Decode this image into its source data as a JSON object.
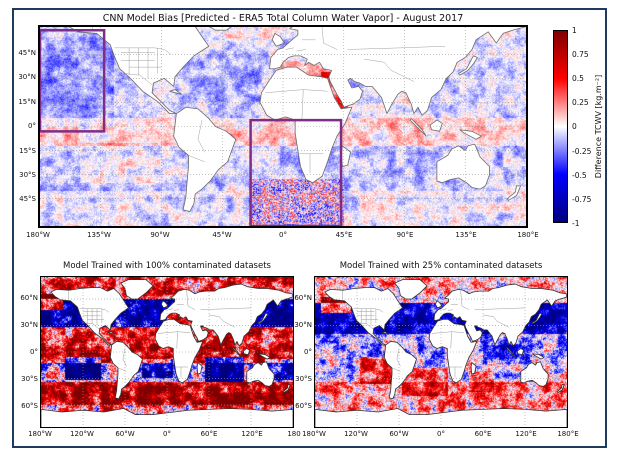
{
  "figure": {
    "background": "#ffffff",
    "border_color": "#1e3a5f",
    "highlight_color": "#7d2c87"
  },
  "chart_data": [
    {
      "type": "heatmap",
      "panel": "top",
      "title": "CNN Model Bias [Predicted - ERA5 Total Column Water Vapor] - August 2017",
      "projection": "equirectangular",
      "lon_range": [
        -180,
        180
      ],
      "lat_range": [
        -62,
        62
      ],
      "lon_ticks": [
        "180°W",
        "135°W",
        "90°W",
        "45°W",
        "0°",
        "45°E",
        "90°E",
        "135°E",
        "180°E"
      ],
      "lat_ticks": [
        "45°N",
        "30°N",
        "15°N",
        "0°",
        "15°S",
        "30°S",
        "45°S"
      ],
      "grid": {
        "lon_step": 45,
        "lat_step": 15,
        "lat_max": 45,
        "style": "dotted"
      },
      "colormap": "seismic",
      "colorbar": {
        "label": "Difference TCWV [kg.m⁻²]",
        "range": [
          -1,
          1
        ],
        "ticks": [
          "1",
          "0.75",
          "0.5",
          "0.25",
          "0",
          "-0.25",
          "-0.5",
          "-0.75",
          "-1"
        ],
        "stops_bottom_to_top": [
          "#00007f",
          "#0000ff",
          "#ffffff",
          "#ff0000",
          "#7f0000"
        ],
        "position": "right"
      },
      "highlight_boxes": [
        {
          "name": "northeast-pacific-box",
          "lon": [
            -180,
            -132.5
          ],
          "lat": [
            -3,
            60
          ],
          "color": "#7d2c87"
        },
        {
          "name": "south-atlantic-africa-box",
          "lon": [
            -24,
            43
          ],
          "lat": [
            -62,
            4
          ],
          "color": "#7d2c87"
        }
      ],
      "coast_color": "#6b6b6b",
      "inner_border_color": "#a0a0a0",
      "noise": {
        "seed": 11,
        "blob_scale": 9,
        "blob_amp": 0.16,
        "fine_amp": 0.1
      },
      "regions": [
        {
          "name": "northern-oceans-faint-blue",
          "lon": [
            -180,
            180
          ],
          "lat": [
            5,
            55
          ],
          "bias": -0.07
        },
        {
          "name": "northeast-pacific-blue",
          "lon": [
            -180,
            -125
          ],
          "lat": [
            0,
            62
          ],
          "bias": -0.12
        },
        {
          "name": "north-atlantic-faint-blue",
          "lon": [
            -80,
            -10
          ],
          "lat": [
            15,
            45
          ],
          "bias": -0.06
        },
        {
          "name": "southern-subtropics-blue-band",
          "lon": [
            -180,
            180
          ],
          "lat": [
            -40,
            -12
          ],
          "bias": -0.11
        },
        {
          "name": "equatorial-faint-pink",
          "lon": [
            -180,
            180
          ],
          "lat": [
            -12,
            5
          ],
          "bias": 0.08
        },
        {
          "name": "south-pacific-pink-mottle",
          "lon": [
            -150,
            -75
          ],
          "lat": [
            -35,
            -10
          ],
          "bias": 0.1
        },
        {
          "name": "red-sea-middle-east-red",
          "lon": [
            28,
            48
          ],
          "lat": [
            10,
            34
          ],
          "bias": 0.42
        },
        {
          "name": "mediterranean-red",
          "lon": [
            -5,
            42
          ],
          "lat": [
            30,
            41
          ],
          "bias": 0.22
        },
        {
          "name": "south-atlantic-storm-track-mottle",
          "lon": [
            -25,
            45
          ],
          "lat": [
            -62,
            -33
          ],
          "bias": 0.02,
          "extra_noise": 0.3
        },
        {
          "name": "far-southern-faint-blue",
          "lon": [
            -180,
            180
          ],
          "lat": [
            -62,
            -44
          ],
          "bias": -0.04
        },
        {
          "name": "arabian-sea-faint-pink",
          "lon": [
            60,
            100
          ],
          "lat": [
            0,
            25
          ],
          "bias": 0.05
        }
      ]
    },
    {
      "type": "heatmap",
      "panel": "bottom-left",
      "title": "Model Trained with 100% contaminated datasets",
      "projection": "equirectangular",
      "lon_range": [
        -180,
        180
      ],
      "lat_range": [
        -85,
        85
      ],
      "lon_ticks": [
        "180°W",
        "120°W",
        "60°W",
        "0°",
        "60°E",
        "120°E",
        "180"
      ],
      "lat_ticks": [
        "60°N",
        "30°N",
        "0°",
        "30°S",
        "60°S"
      ],
      "grid": {
        "lon_step": 60,
        "lat_step": 30,
        "lat_max": 60,
        "style": "dotted"
      },
      "colormap": "seismic",
      "coast_color": "#333333",
      "inner_border_color": "#9a9a9a",
      "noise": {
        "seed": 23,
        "blob_scale": 7,
        "blob_amp": 0.55,
        "fine_amp": 0.3
      },
      "regions": [
        {
          "name": "arctic-red",
          "lon": [
            -180,
            180
          ],
          "lat": [
            60,
            85
          ],
          "bias": 0.5
        },
        {
          "name": "northern-midlat-strong-blue",
          "lon": [
            -180,
            180
          ],
          "lat": [
            28,
            60
          ],
          "bias": -0.85
        },
        {
          "name": "bering-gulf-alaska-red",
          "lon": [
            -180,
            -148
          ],
          "lat": [
            48,
            66
          ],
          "bias": 1.3
        },
        {
          "name": "mediterranean-red",
          "lon": [
            0,
            45
          ],
          "lat": [
            28,
            48
          ],
          "bias": 1.5
        },
        {
          "name": "northern-tropics-red",
          "lon": [
            -180,
            180
          ],
          "lat": [
            6,
            28
          ],
          "bias": 0.55
        },
        {
          "name": "equatorial-strong-red",
          "lon": [
            -180,
            180
          ],
          "lat": [
            -12,
            6
          ],
          "bias": 0.7
        },
        {
          "name": "south-pacific-blue-patch",
          "lon": [
            -145,
            -95
          ],
          "lat": [
            -32,
            -6
          ],
          "bias": -1.2
        },
        {
          "name": "south-indian-blue-patch",
          "lon": [
            55,
            110
          ],
          "lat": [
            -34,
            -6
          ],
          "bias": -1.15
        },
        {
          "name": "south-atlantic-blue-patch",
          "lon": [
            -35,
            8
          ],
          "lat": [
            -30,
            -8
          ],
          "bias": -0.8
        },
        {
          "name": "coral-sea-blue-patch",
          "lon": [
            140,
            180
          ],
          "lat": [
            -32,
            -8
          ],
          "bias": -0.8
        },
        {
          "name": "southern-ocean-strong-red",
          "lon": [
            -180,
            180
          ],
          "lat": [
            -60,
            -34
          ],
          "bias": 0.8
        },
        {
          "name": "antarctic-coastal-light",
          "lon": [
            -180,
            180
          ],
          "lat": [
            -76,
            -60
          ],
          "bias": 0.25
        }
      ]
    },
    {
      "type": "heatmap",
      "panel": "bottom-right",
      "title": "Model Trained with 25% contaminated datasets",
      "projection": "equirectangular",
      "lon_range": [
        -180,
        180
      ],
      "lat_range": [
        -85,
        85
      ],
      "lon_ticks": [
        "180°W",
        "120°W",
        "60°W",
        "0°",
        "60°E",
        "120°E",
        "180°E"
      ],
      "lat_ticks": [
        "60°N",
        "30°N",
        "0°",
        "30°S",
        "60°S"
      ],
      "grid": {
        "lon_step": 60,
        "lat_step": 30,
        "lat_max": 60,
        "style": "dotted"
      },
      "colormap": "seismic",
      "coast_color": "#333333",
      "inner_border_color": "#9a9a9a",
      "noise": {
        "seed": 37,
        "blob_scale": 7,
        "blob_amp": 0.4,
        "fine_amp": 0.24
      },
      "regions": [
        {
          "name": "arctic-light-pink",
          "lon": [
            -180,
            180
          ],
          "lat": [
            55,
            85
          ],
          "bias": 0.12
        },
        {
          "name": "northern-midlat-strong-blue",
          "lon": [
            -180,
            180
          ],
          "lat": [
            20,
            55
          ],
          "bias": -0.75
        },
        {
          "name": "gulf-of-alaska-pink",
          "lon": [
            -172,
            -128
          ],
          "lat": [
            44,
            62
          ],
          "bias": 1.0
        },
        {
          "name": "tropics-light-blue",
          "lon": [
            -180,
            180
          ],
          "lat": [
            -8,
            20
          ],
          "bias": -0.22
        },
        {
          "name": "warm-pool-blue",
          "lon": [
            60,
            130
          ],
          "lat": [
            -14,
            8
          ],
          "bias": -0.3
        },
        {
          "name": "southeast-pacific-red",
          "lon": [
            -115,
            -68
          ],
          "lat": [
            -36,
            -6
          ],
          "bias": 0.55
        },
        {
          "name": "south-atlantic-red",
          "lon": [
            -55,
            10
          ],
          "lat": [
            -50,
            -18
          ],
          "bias": 0.45
        },
        {
          "name": "southwest-indian-pink",
          "lon": [
            40,
            75
          ],
          "lat": [
            -45,
            -22
          ],
          "bias": 0.3
        },
        {
          "name": "southern-subtropics-light-blue",
          "lon": [
            -180,
            180
          ],
          "lat": [
            -34,
            -8
          ],
          "bias": -0.1
        },
        {
          "name": "southern-ocean-pink-band",
          "lon": [
            -180,
            180
          ],
          "lat": [
            -56,
            -34
          ],
          "bias": 0.22
        },
        {
          "name": "antarctic-coastal-pink",
          "lon": [
            -180,
            180
          ],
          "lat": [
            -76,
            -56
          ],
          "bias": 0.2
        },
        {
          "name": "new-zealand-pink",
          "lon": [
            150,
            180
          ],
          "lat": [
            -45,
            -25
          ],
          "bias": 0.25
        }
      ]
    }
  ]
}
